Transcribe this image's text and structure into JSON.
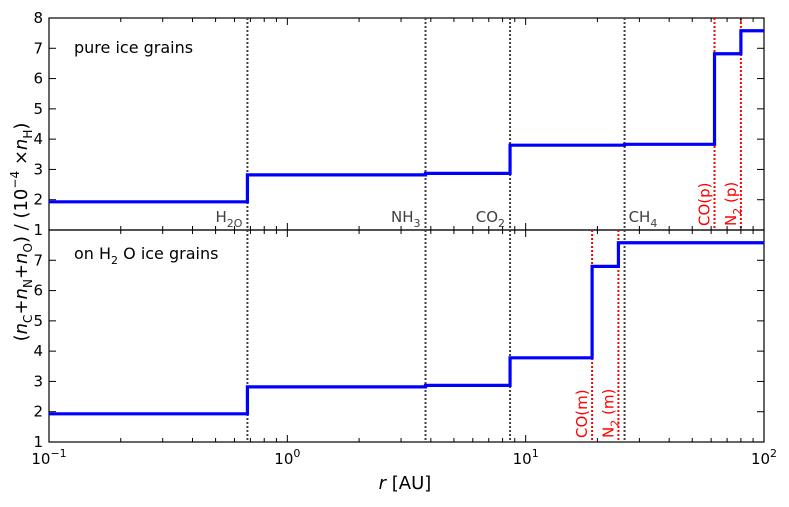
{
  "chart_data": [
    {
      "type": "line",
      "panel": "top",
      "annotation": "pure ice grains",
      "xlabel": "r [AU]",
      "ylabel": "(n_C + n_N + n_O) / (10^-4 × n_H)",
      "xscale": "log",
      "xlim": [
        0.1,
        100
      ],
      "ylim": [
        1,
        8
      ],
      "yticks": [
        1,
        2,
        3,
        4,
        5,
        6,
        7,
        8
      ],
      "line_color": "#0000ff",
      "steps": [
        {
          "x_from": 0.1,
          "x_to": 0.68,
          "y": 1.93
        },
        {
          "x_from": 0.68,
          "x_to": 3.8,
          "y": 2.82
        },
        {
          "x_from": 3.8,
          "x_to": 8.6,
          "y": 2.87
        },
        {
          "x_from": 8.6,
          "x_to": 26,
          "y": 3.8
        },
        {
          "x_from": 26,
          "x_to": 62,
          "y": 3.83
        },
        {
          "x_from": 62,
          "x_to": 80,
          "y": 6.82
        },
        {
          "x_from": 80,
          "x_to": 100,
          "y": 7.58
        }
      ],
      "snowlines": [
        {
          "x": 0.68,
          "label": "H_2O",
          "color": "#404040",
          "label_y": 1.45
        },
        {
          "x": 3.8,
          "label": "NH_3",
          "color": "#404040",
          "label_y": 1.45
        },
        {
          "x": 8.6,
          "label": "CO_2",
          "color": "#404040",
          "label_y": 1.45
        },
        {
          "x": 26,
          "label": "CH_4",
          "color": "#404040",
          "label_y": 1.45
        },
        {
          "x": 62,
          "label": "CO(p)",
          "color": "#ff0000",
          "rotate": true
        },
        {
          "x": 80,
          "label": "N_2 (p)",
          "color": "#ff0000",
          "rotate": true
        }
      ]
    },
    {
      "type": "line",
      "panel": "bottom",
      "annotation": "on H_2O ice grains",
      "xlabel": "r [AU]",
      "xscale": "log",
      "xlim": [
        0.1,
        100
      ],
      "ylim": [
        1,
        8
      ],
      "yticks": [
        1,
        2,
        3,
        4,
        5,
        6,
        7
      ],
      "xticks": [
        {
          "value": 0.1,
          "label": "10^-1"
        },
        {
          "value": 1,
          "label": "10^0"
        },
        {
          "value": 10,
          "label": "10^1"
        },
        {
          "value": 100,
          "label": "10^2"
        }
      ],
      "line_color": "#0000ff",
      "steps": [
        {
          "x_from": 0.1,
          "x_to": 0.68,
          "y": 1.93
        },
        {
          "x_from": 0.68,
          "x_to": 3.8,
          "y": 2.82
        },
        {
          "x_from": 3.8,
          "x_to": 8.6,
          "y": 2.87
        },
        {
          "x_from": 8.6,
          "x_to": 19,
          "y": 3.78
        },
        {
          "x_from": 19,
          "x_to": 24.5,
          "y": 6.8
        },
        {
          "x_from": 24.5,
          "x_to": 100,
          "y": 7.58
        }
      ],
      "snowlines": [
        {
          "x": 0.68,
          "label": "",
          "color": "#404040"
        },
        {
          "x": 3.8,
          "label": "",
          "color": "#404040"
        },
        {
          "x": 8.6,
          "label": "",
          "color": "#404040"
        },
        {
          "x": 26,
          "label": "",
          "color": "#404040"
        },
        {
          "x": 19,
          "label": "CO(m)",
          "color": "#ff0000",
          "rotate": true
        },
        {
          "x": 24.5,
          "label": "N_2 (m)",
          "color": "#ff0000",
          "rotate": true
        }
      ]
    }
  ],
  "labels": {
    "xlabel_var": "r",
    "xlabel_unit": " [AU]",
    "top_annotation": "pure ice grains",
    "bottom_annotation_pre": "on H",
    "bottom_annotation_sub": "2",
    "bottom_annotation_post": " O ice grains",
    "ylabel_parts": [
      "(",
      "n",
      "C",
      "+",
      "n",
      "N",
      "+",
      "n",
      "O",
      ") / (10",
      "−4",
      " ×",
      "n",
      "H",
      ")"
    ]
  }
}
